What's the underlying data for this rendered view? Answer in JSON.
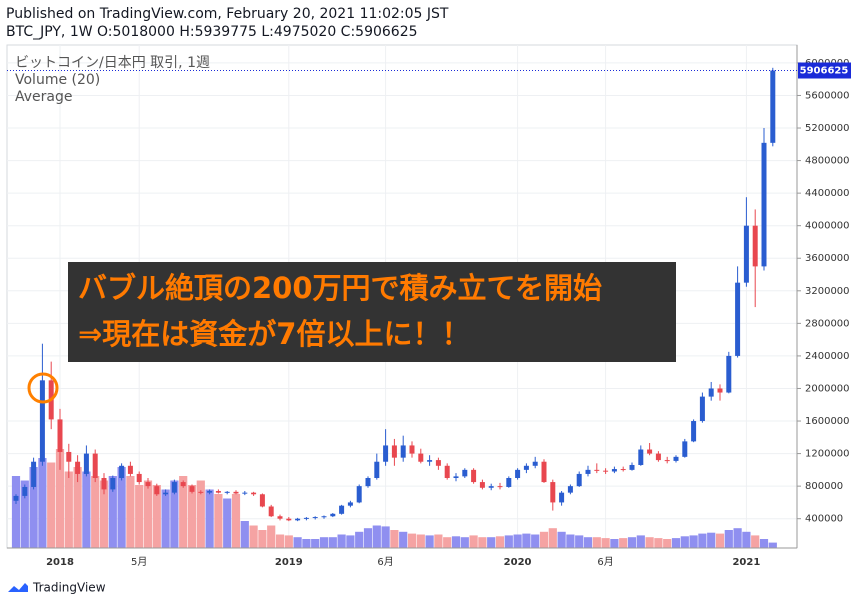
{
  "header": {
    "published": "Published on TradingView.com, February 20, 2021 11:02:05 JST",
    "ohlc_line": "BTC_JPY, 1W O:5018000 H:5939775 L:4975020 C:5906625"
  },
  "chart_data": {
    "type": "candlestick",
    "symbol": "ビットコイン/日本円 取引, 1週",
    "indicator": "Volume (20)",
    "indicator_line": "Average",
    "annotations": [
      "バブル絶頂の200万円で積み立てを開始",
      "⇒現在は資金が7倍以上に！！"
    ],
    "categories": [
      null,
      null,
      null,
      null,
      null,
      "2018",
      null,
      null,
      null,
      null,
      null,
      null,
      null,
      null,
      "5月",
      null,
      null,
      null,
      null,
      null,
      null,
      null,
      null,
      null,
      null,
      null,
      null,
      null,
      null,
      null,
      null,
      "2019",
      null,
      null,
      null,
      null,
      null,
      null,
      null,
      null,
      null,
      null,
      "6月",
      null,
      null,
      null,
      null,
      null,
      null,
      null,
      null,
      null,
      null,
      null,
      null,
      null,
      null,
      "2020",
      null,
      null,
      null,
      null,
      null,
      null,
      null,
      null,
      null,
      "6月",
      null,
      null,
      null,
      null,
      null,
      null,
      null,
      null,
      null,
      null,
      null,
      null,
      null,
      null,
      null,
      "2021",
      null,
      null,
      null
    ],
    "open": [
      620000,
      680000,
      790000,
      1100000,
      2100000,
      1620000,
      1220000,
      1100000,
      950000,
      1200000,
      900000,
      760000,
      900000,
      1050000,
      950000,
      850000,
      800000,
      700000,
      720000,
      850000,
      800000,
      730000,
      720000,
      740000,
      720000,
      730000,
      710000,
      720000,
      700000,
      550000,
      430000,
      400000,
      380000,
      400000,
      410000,
      420000,
      430000,
      460000,
      560000,
      600000,
      800000,
      900000,
      1100000,
      1300000,
      1150000,
      1300000,
      1200000,
      1100000,
      1120000,
      1050000,
      900000,
      920000,
      1000000,
      850000,
      780000,
      800000,
      790000,
      900000,
      1000000,
      1050000,
      1100000,
      850000,
      600000,
      720000,
      800000,
      950000,
      1000000,
      990000,
      980000,
      1010000,
      1000000,
      1060000,
      1250000,
      1200000,
      1120000,
      1110000,
      1160000,
      1350000,
      1600000,
      1900000,
      2000000,
      1950000,
      2400000,
      3300000,
      4000000,
      3500000,
      5018000
    ],
    "high": [
      700000,
      820000,
      1150000,
      2550000,
      2330000,
      1750000,
      1320000,
      1180000,
      1300000,
      1250000,
      960000,
      930000,
      1080000,
      1100000,
      980000,
      900000,
      830000,
      760000,
      880000,
      870000,
      820000,
      750000,
      760000,
      760000,
      740000,
      750000,
      740000,
      730000,
      710000,
      570000,
      450000,
      420000,
      410000,
      420000,
      430000,
      440000,
      470000,
      570000,
      620000,
      820000,
      920000,
      1200000,
      1500000,
      1380000,
      1420000,
      1350000,
      1260000,
      1180000,
      1150000,
      1080000,
      960000,
      1020000,
      1020000,
      880000,
      830000,
      840000,
      920000,
      1020000,
      1080000,
      1160000,
      1130000,
      880000,
      740000,
      820000,
      980000,
      1050000,
      1080000,
      1020000,
      1040000,
      1040000,
      1090000,
      1300000,
      1330000,
      1230000,
      1160000,
      1180000,
      1380000,
      1620000,
      1950000,
      2080000,
      2050000,
      2450000,
      3500000,
      4350000,
      4200000,
      5200000,
      5939775
    ],
    "low": [
      580000,
      650000,
      760000,
      1050000,
      1500000,
      1000000,
      900000,
      850000,
      920000,
      850000,
      700000,
      730000,
      870000,
      920000,
      820000,
      770000,
      680000,
      680000,
      700000,
      780000,
      710000,
      700000,
      700000,
      710000,
      700000,
      700000,
      690000,
      680000,
      540000,
      420000,
      380000,
      370000,
      370000,
      380000,
      390000,
      400000,
      420000,
      450000,
      540000,
      590000,
      780000,
      880000,
      1050000,
      1050000,
      1100000,
      1150000,
      1080000,
      1050000,
      1000000,
      880000,
      860000,
      900000,
      830000,
      760000,
      750000,
      760000,
      780000,
      880000,
      960000,
      1020000,
      840000,
      500000,
      560000,
      700000,
      790000,
      920000,
      960000,
      950000,
      960000,
      980000,
      990000,
      1050000,
      1180000,
      1100000,
      1080000,
      1090000,
      1150000,
      1340000,
      1580000,
      1850000,
      1850000,
      1940000,
      2380000,
      3250000,
      3000000,
      3450000,
      4975020
    ],
    "close": [
      680000,
      790000,
      1100000,
      2100000,
      1620000,
      1220000,
      1100000,
      950000,
      1200000,
      900000,
      760000,
      900000,
      1050000,
      950000,
      850000,
      800000,
      700000,
      720000,
      850000,
      800000,
      730000,
      720000,
      740000,
      720000,
      730000,
      710000,
      720000,
      700000,
      550000,
      430000,
      400000,
      380000,
      400000,
      410000,
      420000,
      430000,
      460000,
      560000,
      600000,
      800000,
      900000,
      1100000,
      1300000,
      1150000,
      1300000,
      1200000,
      1100000,
      1120000,
      1050000,
      900000,
      920000,
      1000000,
      850000,
      780000,
      800000,
      790000,
      900000,
      1000000,
      1050000,
      1100000,
      850000,
      600000,
      720000,
      800000,
      950000,
      1000000,
      990000,
      980000,
      1010000,
      1000000,
      1060000,
      1250000,
      1200000,
      1120000,
      1110000,
      1160000,
      1350000,
      1600000,
      1900000,
      2000000,
      1950000,
      2400000,
      3300000,
      4000000,
      3500000,
      5018000,
      5906625
    ],
    "volume": [
      80,
      75,
      90,
      100,
      95,
      110,
      85,
      90,
      85,
      80,
      75,
      80,
      90,
      80,
      70,
      75,
      70,
      65,
      75,
      80,
      70,
      75,
      65,
      60,
      55,
      60,
      30,
      25,
      20,
      25,
      15,
      14,
      12,
      10,
      10,
      12,
      12,
      15,
      14,
      18,
      22,
      25,
      24,
      20,
      18,
      16,
      15,
      14,
      15,
      12,
      13,
      12,
      14,
      12,
      12,
      13,
      14,
      15,
      16,
      15,
      18,
      22,
      18,
      15,
      14,
      12,
      12,
      11,
      10,
      11,
      12,
      14,
      12,
      11,
      10,
      11,
      13,
      14,
      16,
      17,
      16,
      20,
      22,
      18,
      14,
      10,
      6
    ],
    "vlim": [
      0,
      120
    ],
    "up_color": "#2a5dd0",
    "down_color": "#e8474f",
    "volume_up_color": "#8f8ff0",
    "volume_down_color": "#f5a3a3",
    "price_tag_color": "#1a2bd8",
    "ylim": [
      40000,
      6220000
    ],
    "yticks": [
      400000,
      800000,
      1200000,
      1600000,
      2000000,
      2400000,
      2800000,
      3200000,
      3600000,
      4000000,
      4400000,
      4800000,
      5200000,
      5600000,
      6000000
    ],
    "grid": true
  },
  "footer": {
    "brand": "TradingView"
  }
}
